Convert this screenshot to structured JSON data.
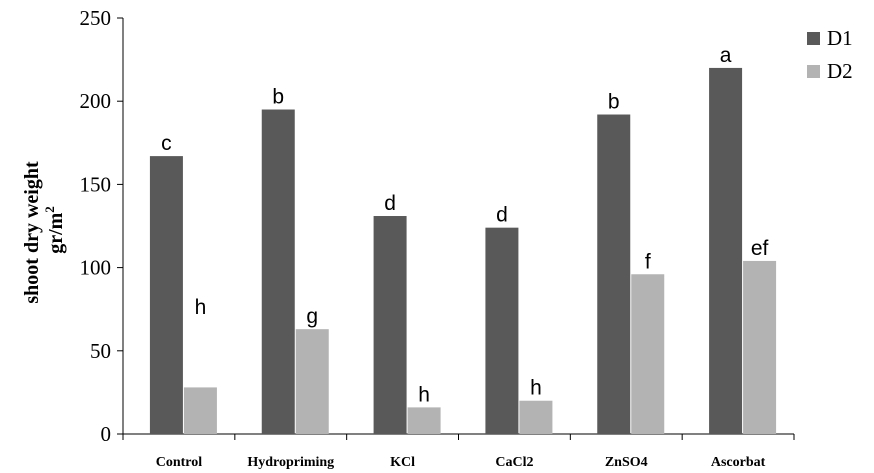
{
  "chart_data": {
    "type": "bar",
    "categories": [
      "Control",
      "Hydropriming",
      "KCl",
      "CaCl2",
      "ZnSO4",
      "Ascorbat"
    ],
    "series": [
      {
        "name": "D1",
        "color": "#595959",
        "values": [
          167,
          195,
          131,
          124,
          192,
          220
        ],
        "labels": [
          "c",
          "b",
          "d",
          "d",
          "b",
          "a"
        ]
      },
      {
        "name": "D2",
        "color": "#b3b3b3",
        "values": [
          28,
          63,
          16,
          20,
          96,
          104
        ],
        "labels": [
          "h",
          "g",
          "h",
          "h",
          "f",
          "ef"
        ]
      }
    ],
    "ylabel_line1": "shoot dry weight",
    "ylabel_line2": "gr/m",
    "ylabel_sup": "2",
    "ylim": [
      0,
      250
    ],
    "yticks": [
      "0",
      "50",
      "100",
      "150",
      "200",
      "250"
    ],
    "grid": false,
    "legend_position": "top-right"
  }
}
